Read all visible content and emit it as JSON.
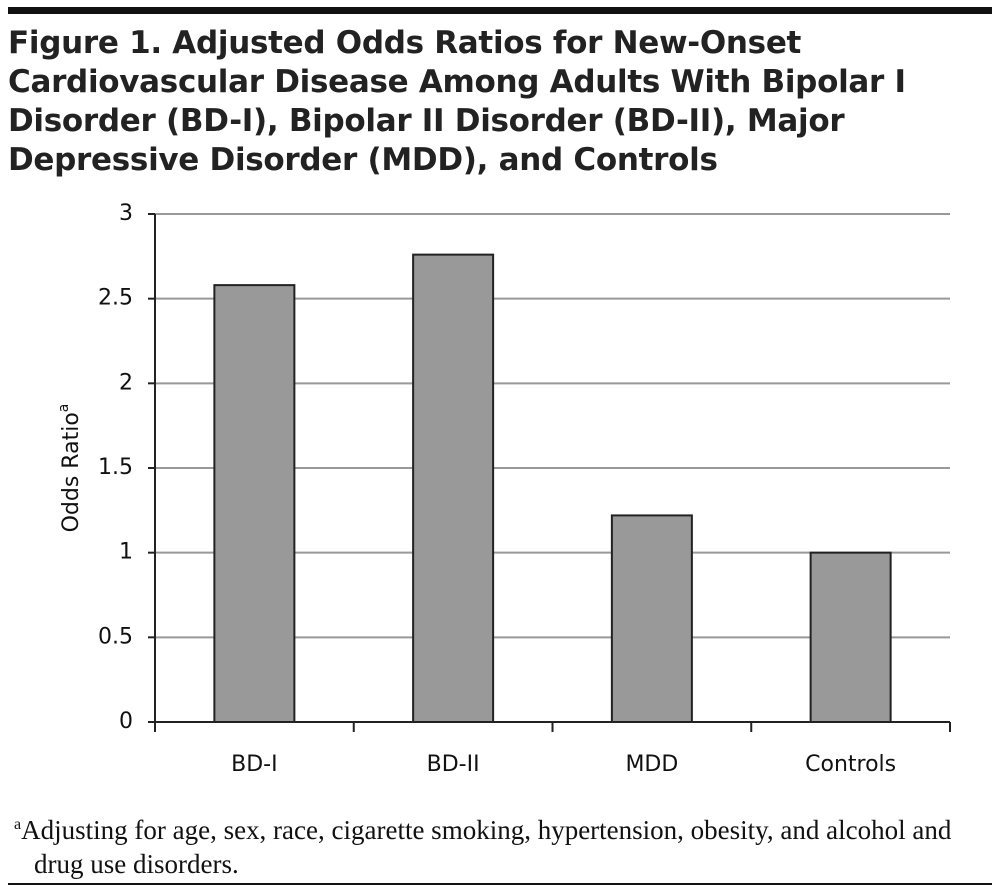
{
  "chart_data": {
    "type": "bar",
    "title": "Figure 1. Adjusted Odds Ratios for New-Onset Cardiovascular Disease Among Adults With Bipolar I Disorder (BD-I), Bipolar II Disorder (BD-II), Major Depressive Disorder (MDD), and Controls",
    "y_label": "Odds Ratio",
    "y_label_sup": "a",
    "categories": [
      "BD-I",
      "BD-II",
      "MDD",
      "Controls"
    ],
    "values": [
      2.58,
      2.76,
      1.22,
      1.0
    ],
    "color": "#999999",
    "ylim": [
      0,
      3
    ],
    "yticks": [
      0,
      0.5,
      1,
      1.5,
      2,
      2.5,
      3
    ],
    "grid": true,
    "footnote": {
      "marker": "a",
      "text": "Adjusting for age, sex, race, cigarette smoking, hypertension, obesity, and alcohol and drug use disorders."
    }
  }
}
